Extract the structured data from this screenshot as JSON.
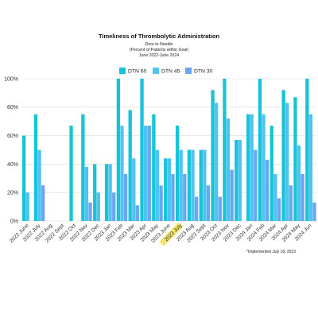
{
  "chart_data": {
    "type": "bar",
    "title": "Timeliness of Thrombolytic Administration",
    "subtitle_lines": [
      "Door to Needle",
      "(Percent of Patients within Goal)",
      "June 2022-June 2024"
    ],
    "xlabel": "",
    "ylabel": "",
    "ylim": [
      0,
      100
    ],
    "yticks": [
      "0%",
      "20%",
      "40%",
      "60%",
      "80%",
      "100%"
    ],
    "grid": true,
    "legend_position": "top-center",
    "highlighted_category": "2023 July",
    "highlight_color": "#f5e66a",
    "note": "*Implemented July 18, 2023",
    "categories": [
      "2022 June",
      "2022 July",
      "2022 Aug",
      "2022 Sept",
      "2022 Oct",
      "2022 Nov",
      "2022 Dec",
      "2023 Jan",
      "2023 Feb",
      "2023 Mar",
      "2023 Apr",
      "2023 May",
      "2023 June",
      "2023 July",
      "2023 Aug",
      "2023 Sept",
      "2023 Oct",
      "2023 Nov",
      "2023 Dec",
      "2024 Jan",
      "2024 Feb",
      "2024 Mar",
      "2024 Apr",
      "2024 May",
      "2024 Jun"
    ],
    "series": [
      {
        "name": "DTN 60",
        "color": "#17c3d6",
        "values": [
          60,
          75,
          0,
          0,
          67,
          75,
          40,
          40,
          100,
          78,
          100,
          75,
          44,
          67,
          50,
          50,
          92,
          100,
          57,
          75,
          100,
          67,
          92,
          87,
          100
        ]
      },
      {
        "name": "DTN 45",
        "color": "#4fc3f2",
        "values": [
          20,
          50,
          0,
          0,
          0,
          38,
          20,
          40,
          67,
          44,
          67,
          50,
          44,
          50,
          50,
          50,
          83,
          72,
          57,
          75,
          75,
          33,
          83,
          53,
          75
        ]
      },
      {
        "name": "DTN 30",
        "color": "#6aa7f0",
        "values": [
          0,
          25,
          0,
          0,
          0,
          13,
          0,
          20,
          33,
          11,
          67,
          25,
          33,
          33,
          17,
          25,
          17,
          36,
          0,
          50,
          43,
          16,
          25,
          33,
          13
        ]
      }
    ]
  }
}
